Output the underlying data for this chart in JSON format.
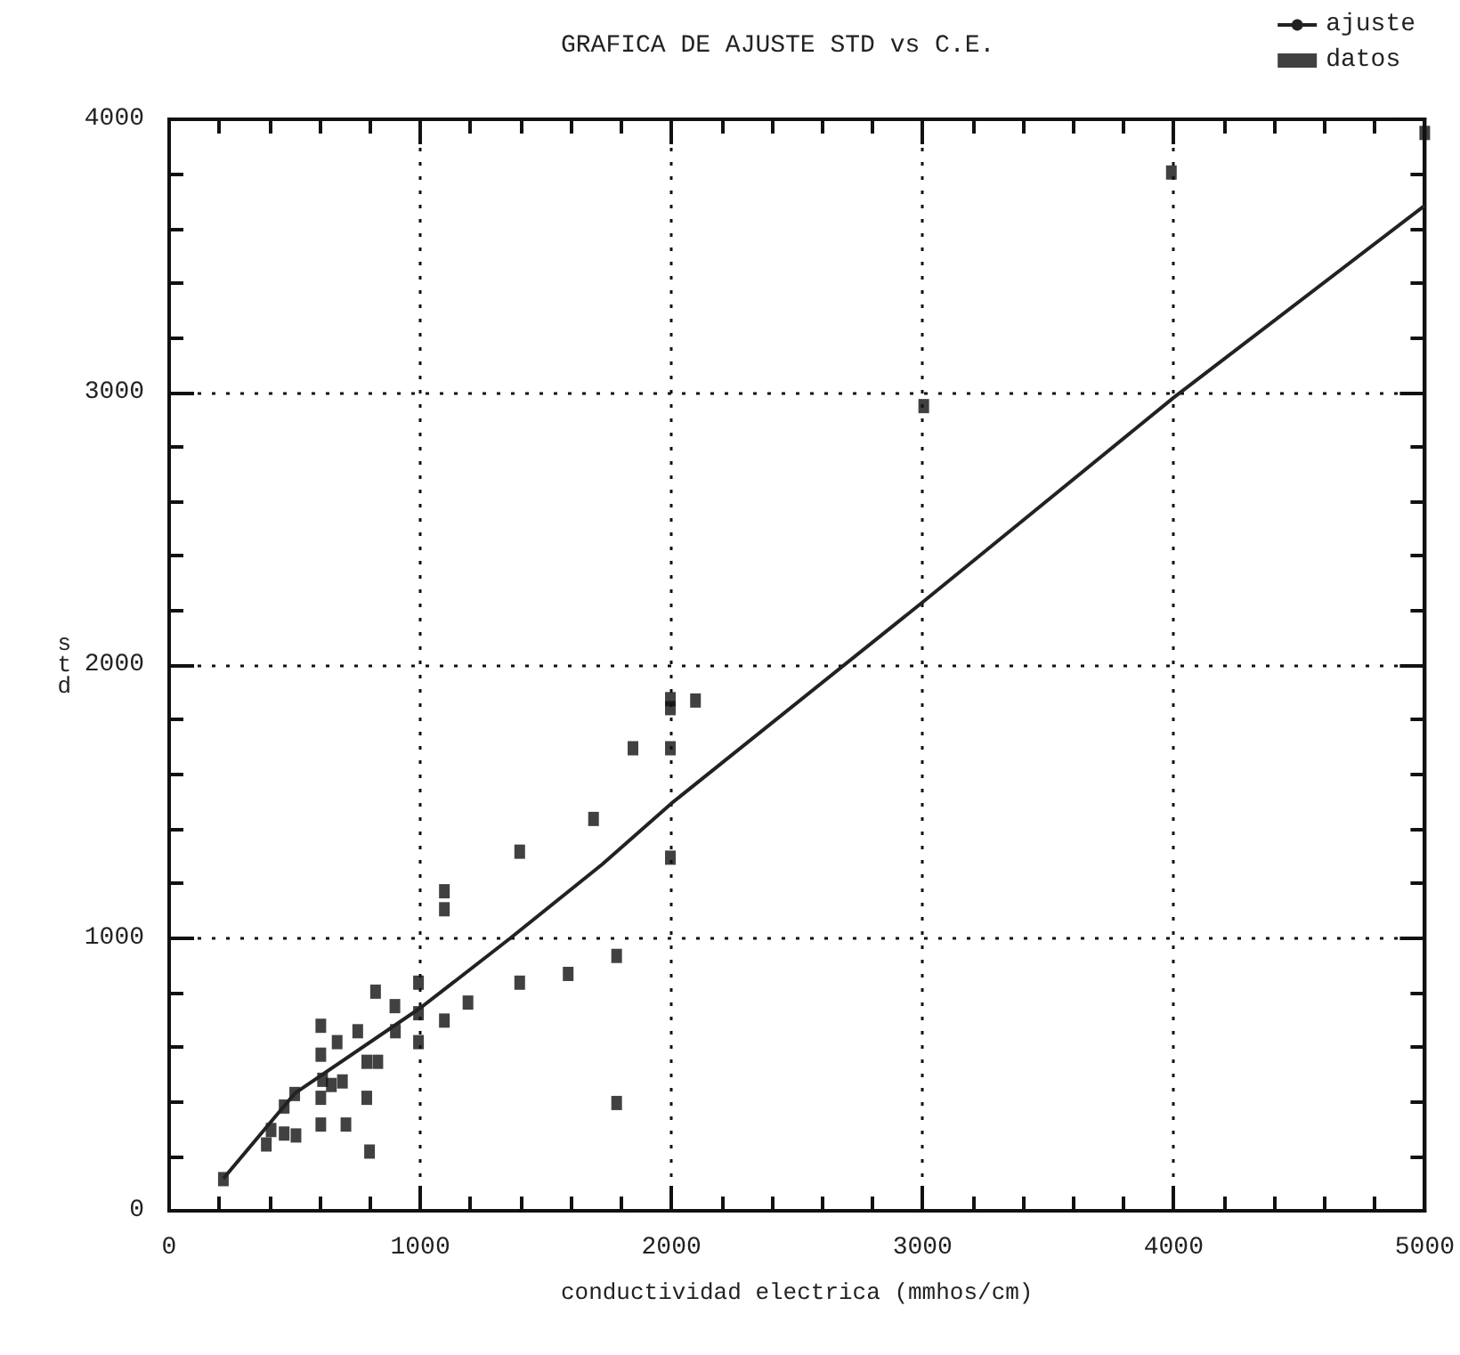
{
  "chart_data": {
    "type": "scatter",
    "title": "GRAFICA DE AJUSTE STD vs C.E.",
    "xlabel": "conductividad electrica (mmhos/cm)",
    "ylabel": "std",
    "xlim": [
      0,
      5000
    ],
    "xticks": [
      0,
      1000,
      2000,
      3000,
      4000,
      5000
    ],
    "ylim": [
      0,
      4000
    ],
    "yticks": [
      0,
      1000,
      2000,
      3000,
      4000
    ],
    "grid": true,
    "legend": "top right",
    "series": [
      {
        "name": "ajuste",
        "type": "line",
        "color": "#222222",
        "line_style": "solid",
        "marker": "none",
        "x": [
          216,
          500,
          1000,
          1360,
          1725,
          2000,
          3000,
          4000,
          5000
        ],
        "values": [
          118,
          430,
          743,
          1000,
          1270,
          1493,
          2230,
          2980,
          3684
        ]
      },
      {
        "name": "datos",
        "color": "#111111",
        "marker": "square",
        "x": [
          216,
          387,
          406,
          458,
          505,
          458,
          500,
          604,
          704,
          604,
          611,
          604,
          604,
          669,
          751,
          646,
          690,
          787,
          798,
          787,
          831,
          822,
          899,
          901,
          993,
          993,
          993,
          1096,
          1190,
          1096,
          1096,
          1396,
          1589,
          1782,
          1782,
          1396,
          1690,
          1847,
          1996,
          1996,
          1996,
          2096,
          1996,
          3005,
          3991,
          5000
        ],
        "values": [
          116,
          243,
          296,
          283,
          276,
          382,
          428,
          316,
          316,
          414,
          480,
          572,
          678,
          618,
          658,
          461,
          474,
          414,
          217,
          546,
          546,
          803,
          750,
          658,
          836,
          724,
          618,
          697,
          763,
          1105,
          1171,
          836,
          868,
          395,
          934,
          1316,
          1436,
          1695,
          1695,
          1842,
          1875,
          1870,
          1294,
          2949,
          3805,
          3950
        ]
      }
    ]
  }
}
